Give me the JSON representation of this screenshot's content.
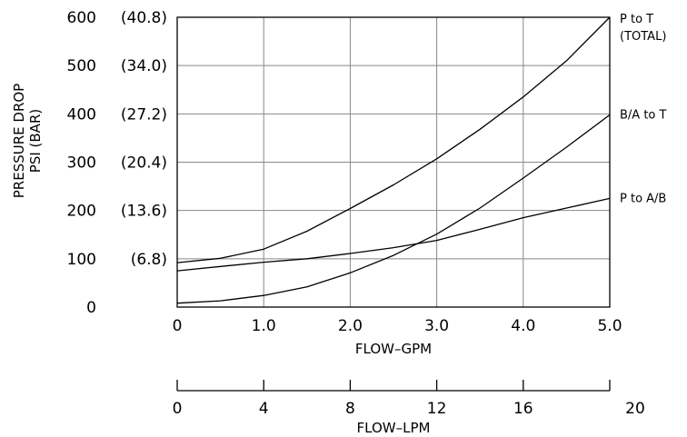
{
  "chart_data": {
    "type": "line",
    "title": "",
    "ylabel": "PRESSURE DROP",
    "ylabel_unit": "PSI (BAR)",
    "xlabel": "FLOW–GPM",
    "x2label": "FLOW–LPM",
    "xlim": [
      0,
      5
    ],
    "ylim": [
      0,
      600
    ],
    "x2lim": [
      0,
      20
    ],
    "grid": true,
    "x_ticks": [
      "0",
      "1.0",
      "2.0",
      "3.0",
      "4.0",
      "5.0"
    ],
    "x2_ticks": [
      "0",
      "4",
      "8",
      "12",
      "16",
      "20"
    ],
    "y_ticks": [
      {
        "psi": "0",
        "bar": ""
      },
      {
        "psi": "100",
        "bar": "(6.8)"
      },
      {
        "psi": "200",
        "bar": "(13.6)"
      },
      {
        "psi": "300",
        "bar": "(20.4)"
      },
      {
        "psi": "400",
        "bar": "(27.2)"
      },
      {
        "psi": "500",
        "bar": "(34.0)"
      },
      {
        "psi": "600",
        "bar": "(40.8)"
      }
    ],
    "series": [
      {
        "name": "P to T",
        "name_line2": "(TOTAL)",
        "x": [
          0,
          0.5,
          1.0,
          1.5,
          2.0,
          2.5,
          3.0,
          3.5,
          4.0,
          4.5,
          5.0
        ],
        "values": [
          92,
          101,
          120,
          157,
          204,
          253,
          307,
          368,
          435,
          510,
          600
        ]
      },
      {
        "name": "B/A to T",
        "x": [
          0,
          0.5,
          1.0,
          1.5,
          2.0,
          2.5,
          3.0,
          3.5,
          4.0,
          4.5,
          5.0
        ],
        "values": [
          8,
          13,
          24,
          42,
          71,
          107,
          151,
          205,
          267,
          331,
          398
        ]
      },
      {
        "name": "P to A/B",
        "x": [
          0,
          0.5,
          1.0,
          1.5,
          2.0,
          2.5,
          3.0,
          3.5,
          4.0,
          4.5,
          5.0
        ],
        "values": [
          75,
          84,
          93,
          100,
          111,
          123,
          138,
          161,
          185,
          205,
          225
        ]
      }
    ]
  }
}
